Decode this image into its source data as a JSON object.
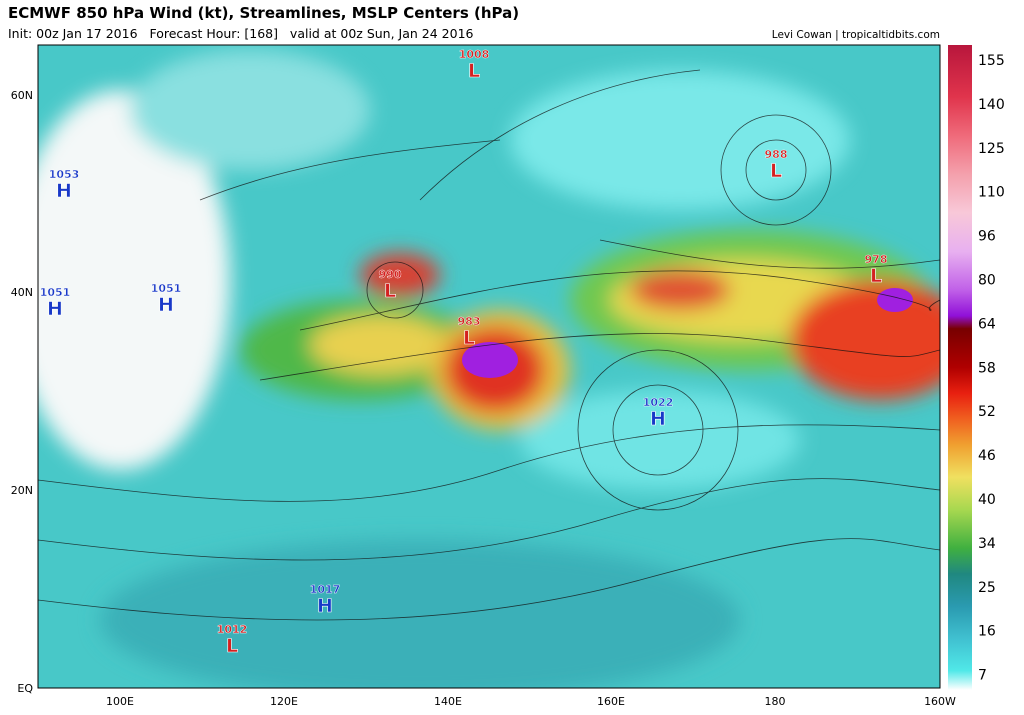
{
  "header": {
    "title": "ECMWF 850 hPa Wind (kt), Streamlines, MSLP Centers (hPa)",
    "subtitle": "Init: 00z Jan 17 2016   Forecast Hour: [168]   valid at 00z Sun, Jan 24 2016",
    "credit": "Levi Cowan | tropicaltidbits.com"
  },
  "map": {
    "lon_labels": [
      "100E",
      "120E",
      "140E",
      "160E",
      "180",
      "160W"
    ],
    "lat_labels": [
      "60N",
      "40N",
      "20N",
      "EQ"
    ],
    "centers": [
      {
        "type": "L",
        "value": 1008
      },
      {
        "type": "L",
        "value": 988
      },
      {
        "type": "H",
        "value": 1053
      },
      {
        "type": "L",
        "value": 990
      },
      {
        "type": "L",
        "value": 978
      },
      {
        "type": "H",
        "value": 1051
      },
      {
        "type": "H",
        "value": 1051
      },
      {
        "type": "L",
        "value": 983
      },
      {
        "type": "H",
        "value": 1022
      },
      {
        "type": "H",
        "value": 1017
      },
      {
        "type": "L",
        "value": 1012
      }
    ]
  },
  "colorbar": {
    "ticks": [
      155,
      140,
      125,
      110,
      96,
      80,
      64,
      58,
      52,
      46,
      40,
      34,
      25,
      16,
      7
    ]
  }
}
